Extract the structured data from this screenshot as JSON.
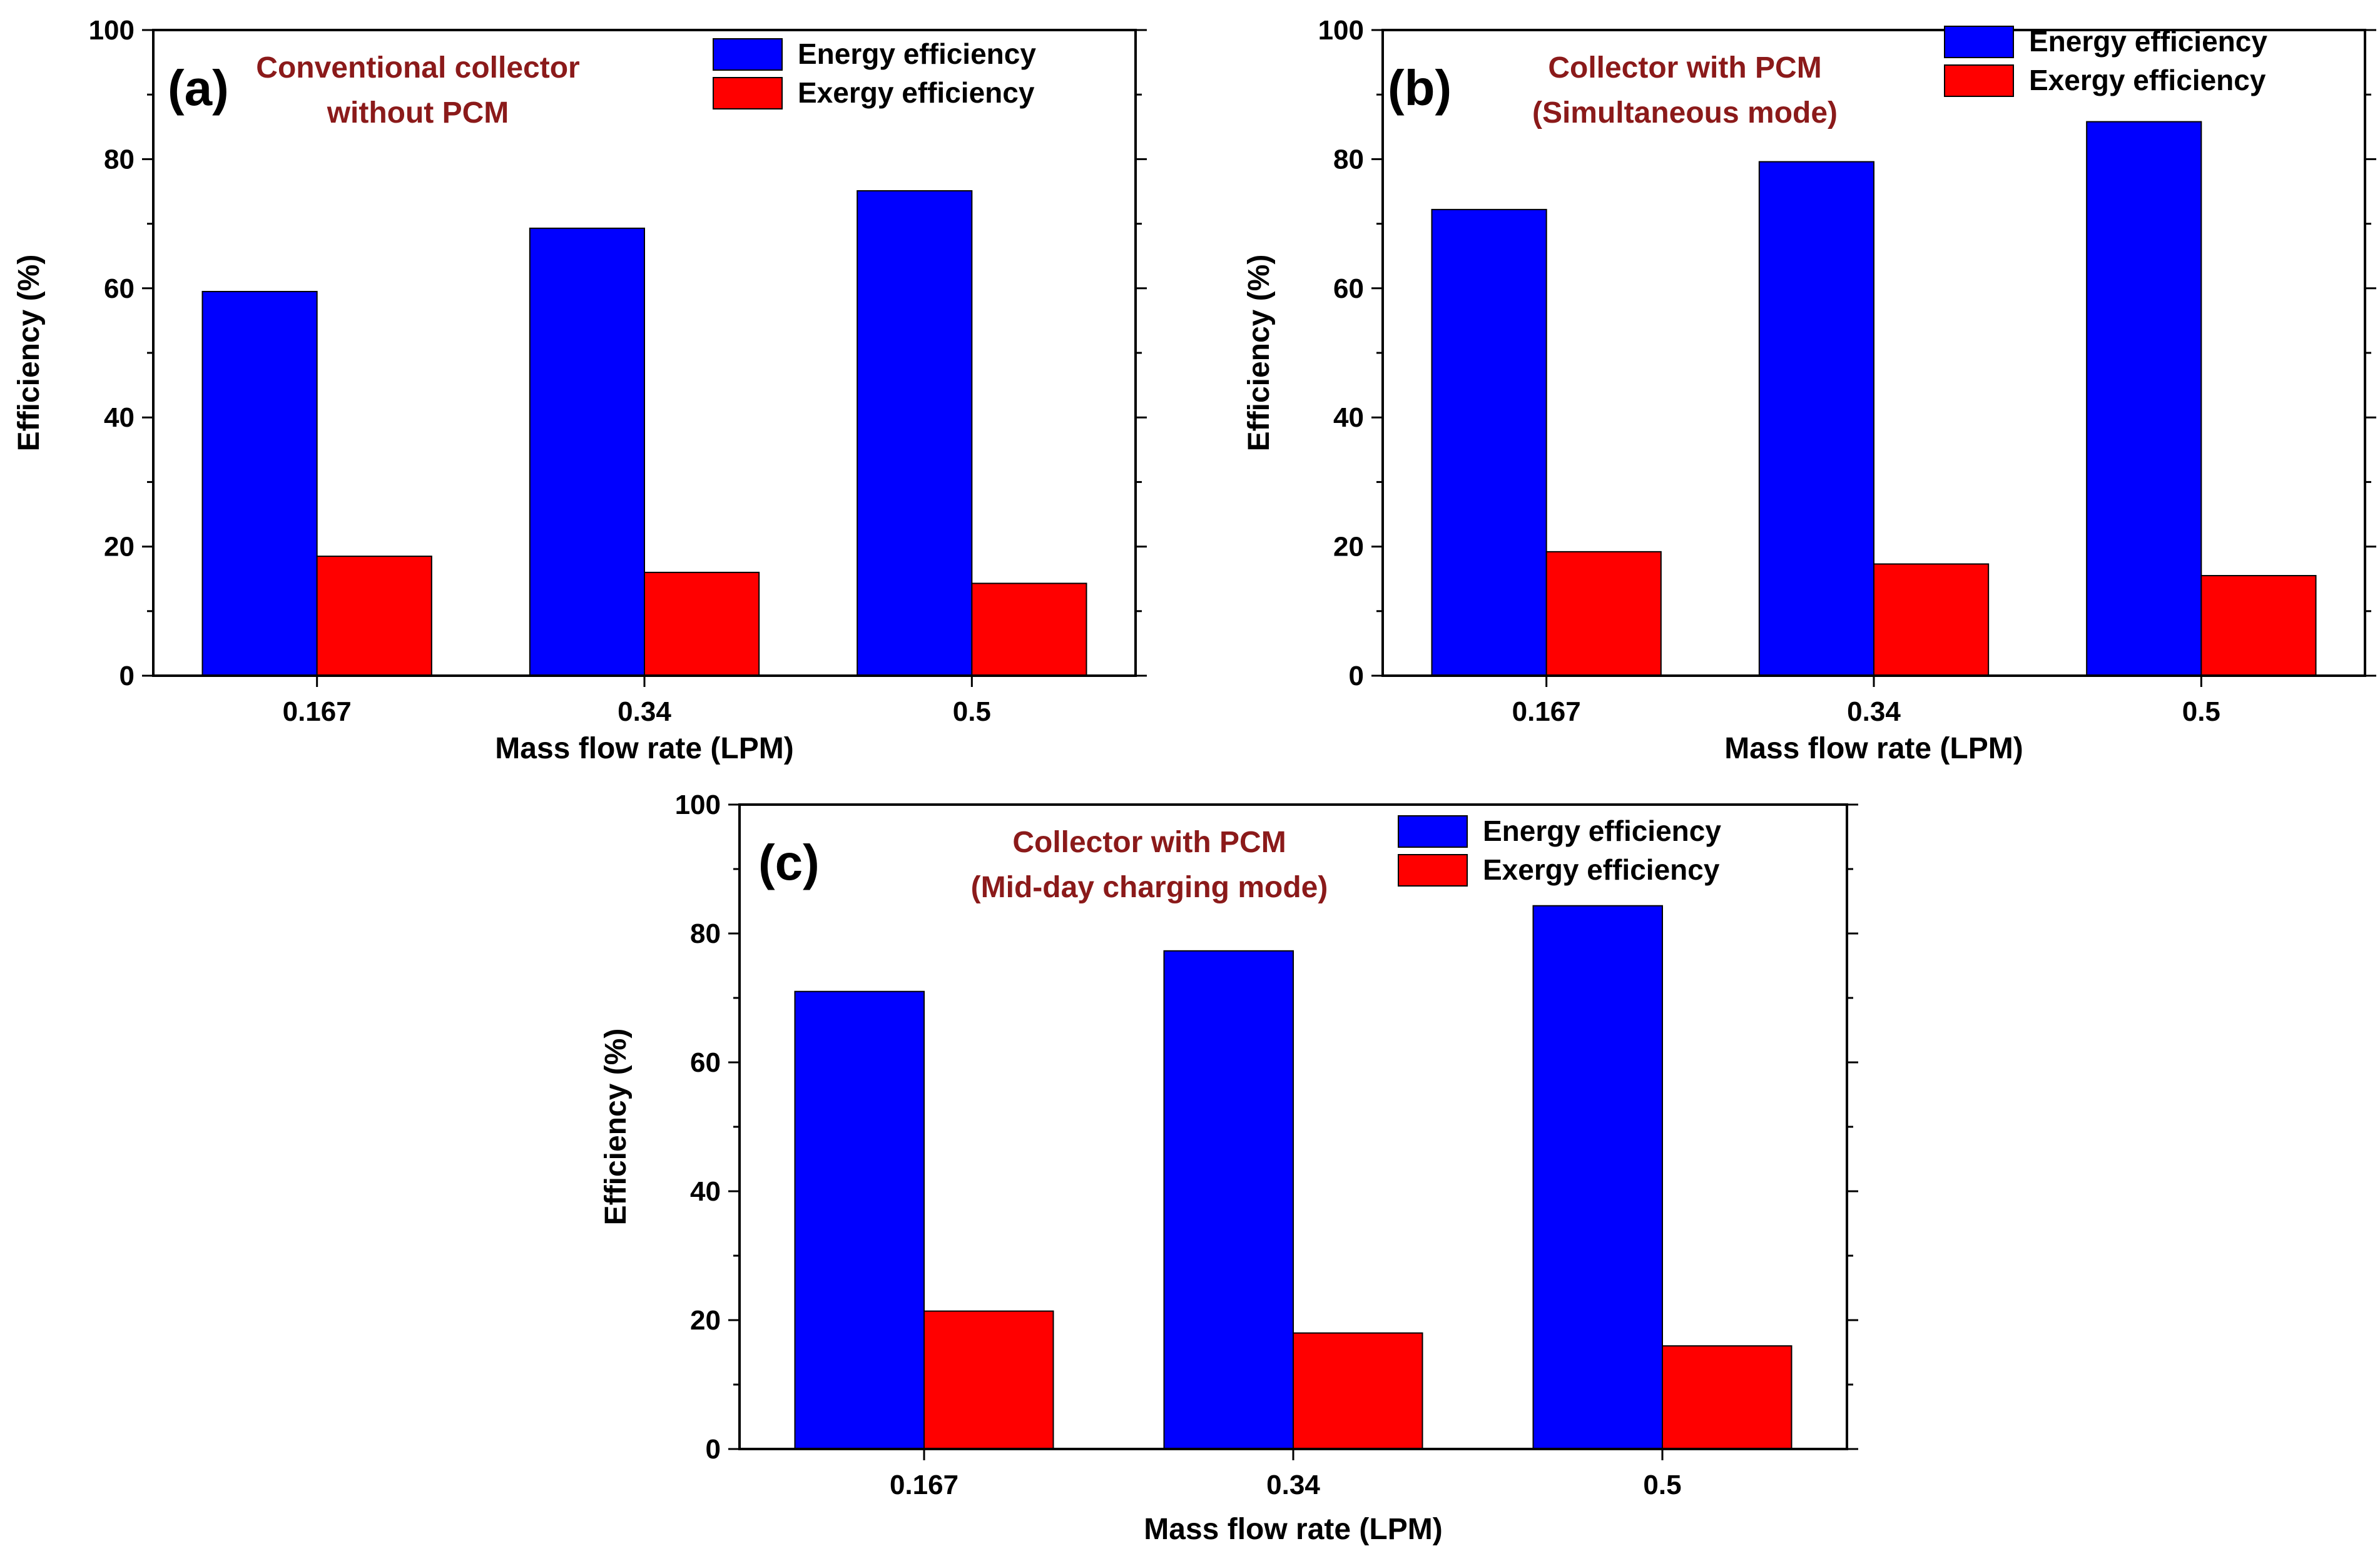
{
  "colors": {
    "energy": "#0000ff",
    "exergy": "#ff0000",
    "annotation": "#8b1a1a",
    "axis": "#000000"
  },
  "chart_data": [
    {
      "type": "bar",
      "panel_label": "(a)",
      "annotation": [
        "Conventional collector",
        "without PCM"
      ],
      "categories": [
        "0.167",
        "0.34",
        "0.5"
      ],
      "series": [
        {
          "name": "Energy efficiency",
          "values": [
            59.5,
            69.3,
            75.1
          ]
        },
        {
          "name": "Exergy efficiency",
          "values": [
            18.5,
            16.0,
            14.3
          ]
        }
      ],
      "xlabel": "Mass flow rate (LPM)",
      "ylabel": "Efficiency (%)",
      "ylim": [
        0,
        100
      ],
      "yticks": [
        "0",
        "20",
        "40",
        "60",
        "80",
        "100"
      ],
      "legend": "top-right",
      "grid": false
    },
    {
      "type": "bar",
      "panel_label": "(b)",
      "annotation": [
        "Collector with PCM",
        "(Simultaneous mode)"
      ],
      "categories": [
        "0.167",
        "0.34",
        "0.5"
      ],
      "series": [
        {
          "name": "Energy efficiency",
          "values": [
            72.2,
            79.6,
            85.8
          ]
        },
        {
          "name": "Exergy efficiency",
          "values": [
            19.2,
            17.3,
            15.5
          ]
        }
      ],
      "xlabel": "Mass flow rate (LPM)",
      "ylabel": "Efficiency (%)",
      "ylim": [
        0,
        100
      ],
      "yticks": [
        "0",
        "20",
        "40",
        "60",
        "80",
        "100"
      ],
      "legend": "top-right",
      "grid": false
    },
    {
      "type": "bar",
      "panel_label": "(c)",
      "annotation": [
        "Collector with PCM",
        "(Mid-day charging mode)"
      ],
      "categories": [
        "0.167",
        "0.34",
        "0.5"
      ],
      "series": [
        {
          "name": "Energy efficiency",
          "values": [
            71.0,
            77.3,
            84.3
          ]
        },
        {
          "name": "Exergy efficiency",
          "values": [
            21.4,
            18.0,
            16.0
          ]
        }
      ],
      "xlabel": "Mass flow rate (LPM)",
      "ylabel": "Efficiency (%)",
      "ylim": [
        0,
        100
      ],
      "yticks": [
        "0",
        "20",
        "40",
        "60",
        "80",
        "100"
      ],
      "legend": "top-right",
      "grid": false
    }
  ]
}
